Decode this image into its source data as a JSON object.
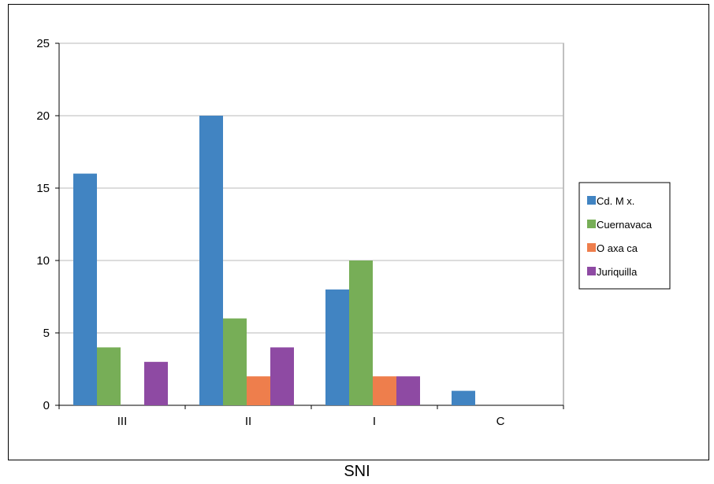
{
  "chart_data": {
    "type": "bar",
    "title": "",
    "xlabel": "SNI",
    "ylabel": "",
    "categories": [
      "III",
      "II",
      "I",
      "C"
    ],
    "y_ticks": [
      "0",
      "5",
      "10",
      "15",
      "20",
      "25"
    ],
    "ylim": [
      0,
      25
    ],
    "grid": true,
    "legend_position": "right",
    "series": [
      {
        "name": "Cd. M x.",
        "color": "#4184C2",
        "values": [
          16,
          20,
          8,
          1
        ]
      },
      {
        "name": "Cuernavaca",
        "color": "#77AE57",
        "values": [
          4,
          6,
          10,
          0
        ]
      },
      {
        "name": "O axa ca",
        "color": "#EE7E4C",
        "values": [
          0,
          2,
          2,
          0
        ]
      },
      {
        "name": "Juriquilla",
        "color": "#8E4AA3",
        "values": [
          3,
          4,
          2,
          0
        ]
      }
    ]
  }
}
